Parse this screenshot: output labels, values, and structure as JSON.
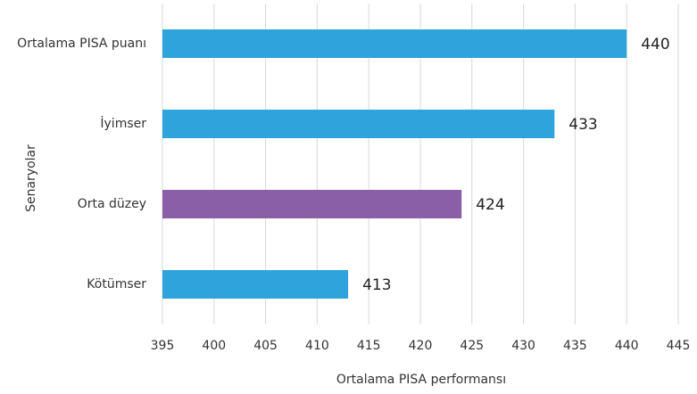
{
  "chart_data": {
    "type": "barh",
    "categories": [
      "Ortalama PISA puanı",
      "İyimser",
      "Orta düzey",
      "Kötümser"
    ],
    "values": [
      440,
      433,
      424,
      413
    ],
    "colors": [
      "#2ea3dc",
      "#2ea3dc",
      "#8b5ea8",
      "#2ea3dc"
    ],
    "xlim": [
      395,
      445
    ],
    "xticks": [
      395,
      400,
      405,
      410,
      415,
      420,
      425,
      430,
      435,
      440,
      445
    ],
    "xlabel": "Ortalama PISA performansı",
    "ylabel": "Senaryolar",
    "grid": true
  }
}
